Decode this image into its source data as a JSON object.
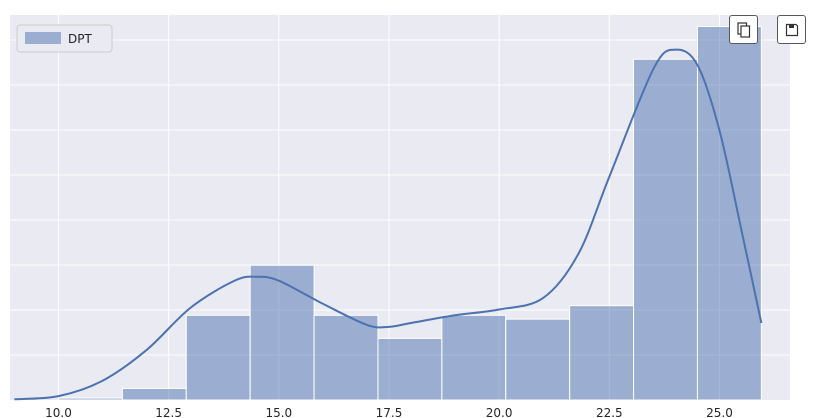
{
  "toolbar": {
    "copy_icon": "copy-icon",
    "save_icon": "floppy-disk-icon"
  },
  "chart_data": {
    "type": "bar",
    "grid": true,
    "legend": {
      "placement": "top-left",
      "entries": [
        "DPT"
      ]
    },
    "xlim": [
      8.9,
      26.6
    ],
    "ylim": [
      0,
      1
    ],
    "xticks": [
      10.0,
      12.5,
      15.0,
      17.5,
      20.0,
      22.5,
      25.0
    ],
    "xtick_labels": [
      "10.0",
      "12.5",
      "15.0",
      "17.5",
      "20.0",
      "22.5",
      "25.0"
    ],
    "bin_edges": [
      10.0,
      11.45,
      12.9,
      14.35,
      15.8,
      17.25,
      18.7,
      20.15,
      21.6,
      23.05,
      24.5,
      25.95
    ],
    "series": [
      {
        "name": "DPT",
        "color": "#4c72b0",
        "values": [
          0.005,
          0.03,
          0.22,
          0.35,
          0.22,
          0.16,
          0.22,
          0.21,
          0.245,
          0.885,
          0.97
        ]
      }
    ],
    "kde": {
      "x": [
        9.0,
        10.0,
        11.0,
        12.0,
        13.0,
        14.0,
        14.5,
        15.0,
        16.0,
        17.0,
        17.5,
        18.0,
        19.0,
        20.0,
        21.0,
        21.8,
        22.5,
        23.5,
        24.0,
        24.5,
        25.0,
        25.5,
        25.95
      ],
      "y": [
        0.002,
        0.01,
        0.05,
        0.13,
        0.24,
        0.31,
        0.32,
        0.31,
        0.25,
        0.195,
        0.19,
        0.2,
        0.22,
        0.235,
        0.265,
        0.38,
        0.58,
        0.86,
        0.91,
        0.87,
        0.7,
        0.44,
        0.2
      ]
    }
  }
}
